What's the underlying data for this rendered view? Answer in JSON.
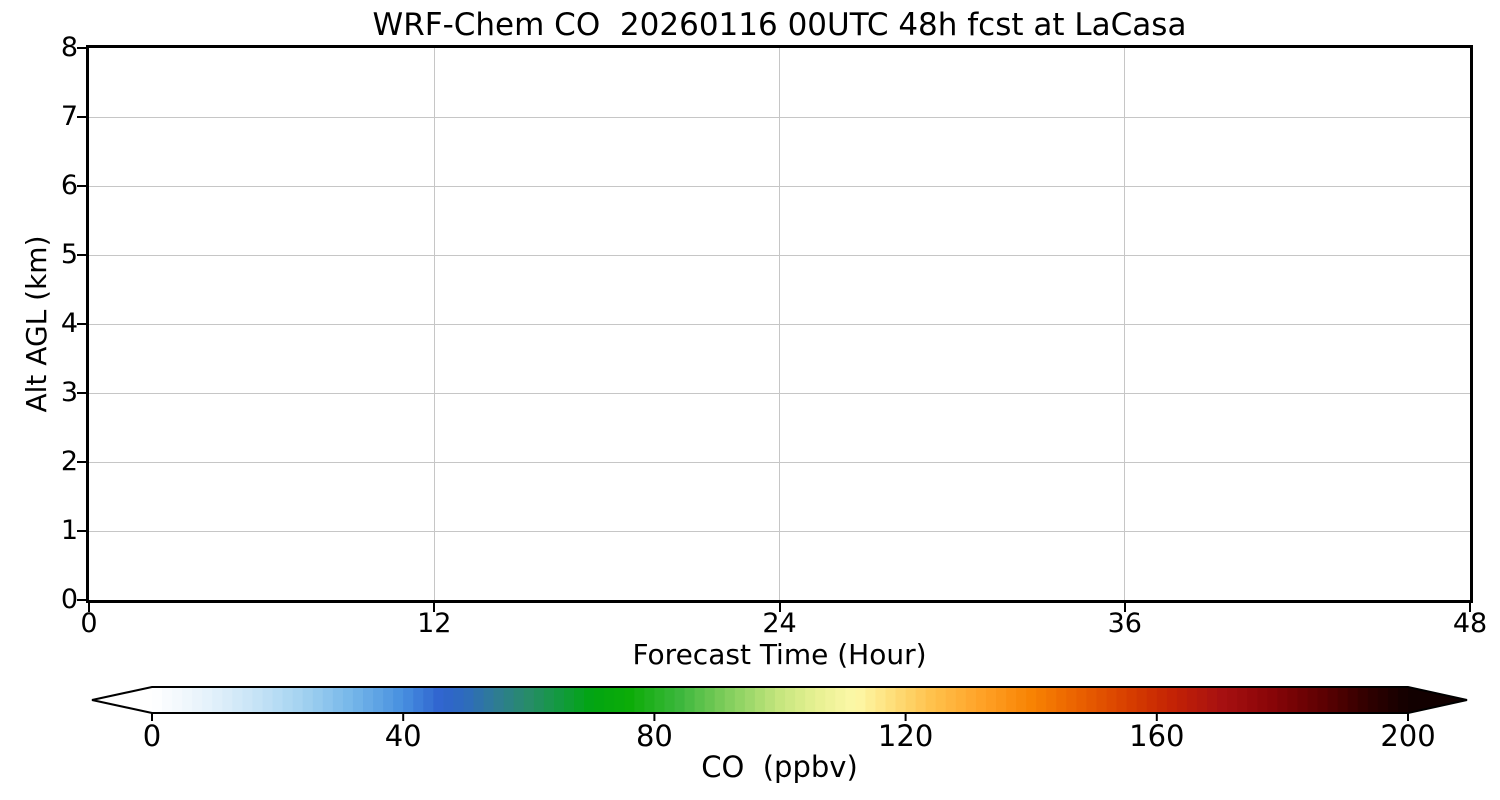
{
  "figure": {
    "title": "WRF-Chem CO  20260116 00UTC 48h fcst at LaCasa"
  },
  "axes": {
    "xlabel": "Forecast Time (Hour)",
    "ylabel": "Alt AGL (km)",
    "xlim": [
      0,
      48
    ],
    "ylim": [
      0,
      8
    ],
    "xticks": [
      0,
      12,
      24,
      36,
      48
    ],
    "yticks": [
      0,
      1,
      2,
      3,
      4,
      5,
      6,
      7,
      8
    ],
    "grid": true,
    "grid_color": "#c6c6c6",
    "spine_color": "#000000"
  },
  "colorbar": {
    "label": "CO  (ppbv)",
    "ticks": [
      0,
      40,
      80,
      120,
      160,
      200
    ],
    "range": [
      0,
      200
    ],
    "extend": "both",
    "segments": 125,
    "under_color": "#ffffff",
    "over_color": "#120000",
    "outline_color": "#000000",
    "stops": [
      {
        "v": 0,
        "color": "#ffffff"
      },
      {
        "v": 8,
        "color": "#e8f3fb"
      },
      {
        "v": 16,
        "color": "#c9e5f7"
      },
      {
        "v": 24,
        "color": "#a3d2f0"
      },
      {
        "v": 32,
        "color": "#74b6e9"
      },
      {
        "v": 40,
        "color": "#478fdf"
      },
      {
        "v": 46,
        "color": "#2f63cf"
      },
      {
        "v": 50,
        "color": "#2e6cbc"
      },
      {
        "v": 55,
        "color": "#2e7c92"
      },
      {
        "v": 60,
        "color": "#278c68"
      },
      {
        "v": 65,
        "color": "#129a3e"
      },
      {
        "v": 70,
        "color": "#02a512"
      },
      {
        "v": 76,
        "color": "#0cac08"
      },
      {
        "v": 84,
        "color": "#3cb73c"
      },
      {
        "v": 92,
        "color": "#84cf5e"
      },
      {
        "v": 100,
        "color": "#c6e67e"
      },
      {
        "v": 106,
        "color": "#e8f193"
      },
      {
        "v": 112,
        "color": "#fdf8a8"
      },
      {
        "v": 118,
        "color": "#fede79"
      },
      {
        "v": 124,
        "color": "#ffc24d"
      },
      {
        "v": 132,
        "color": "#ffa227"
      },
      {
        "v": 140,
        "color": "#f88303"
      },
      {
        "v": 148,
        "color": "#e95f00"
      },
      {
        "v": 156,
        "color": "#d63c00"
      },
      {
        "v": 162,
        "color": "#c52404"
      },
      {
        "v": 170,
        "color": "#a81111"
      },
      {
        "v": 178,
        "color": "#8a0508"
      },
      {
        "v": 186,
        "color": "#5f0102"
      },
      {
        "v": 194,
        "color": "#2e0000"
      },
      {
        "v": 200,
        "color": "#120000"
      }
    ]
  },
  "chart_data": {
    "type": "heatmap",
    "title": "WRF-Chem CO  20260116 00UTC 48h fcst at LaCasa",
    "xlabel": "Forecast Time (Hour)",
    "ylabel": "Alt AGL (km)",
    "xlim": [
      0,
      48
    ],
    "ylim": [
      0,
      8
    ],
    "xticks": [
      0,
      12,
      24,
      36,
      48
    ],
    "yticks": [
      0,
      1,
      2,
      3,
      4,
      5,
      6,
      7,
      8
    ],
    "grid": true,
    "legend_position": "none",
    "series": [],
    "values_note": "plot area is entirely blank/white — no CO field values are visibly rendered above the colormap minimum",
    "colorbar": {
      "label": "CO  (ppbv)",
      "ticks": [
        0,
        40,
        80,
        120,
        160,
        200
      ],
      "range": [
        0,
        200
      ],
      "extend": "both"
    }
  }
}
